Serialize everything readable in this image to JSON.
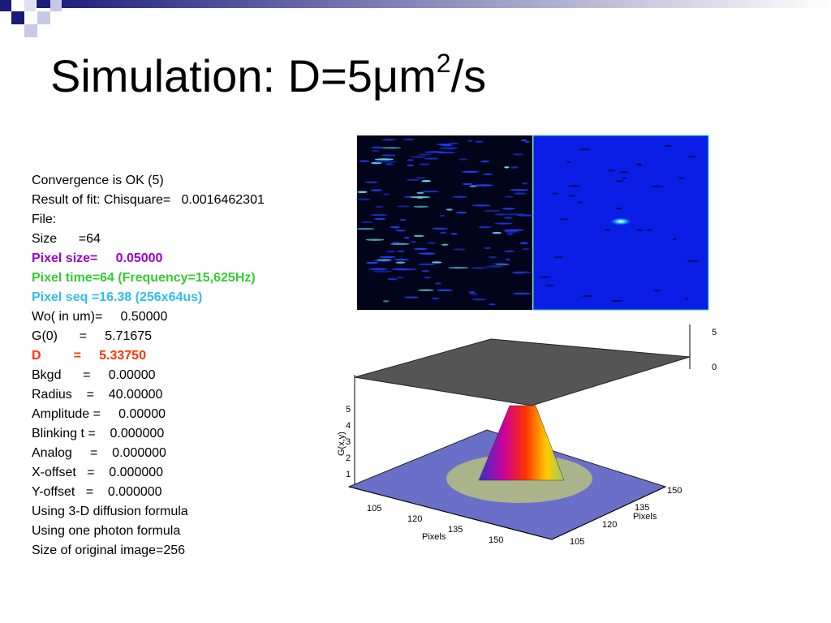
{
  "title": {
    "main": "Simulation: D=5μm",
    "sup": "2",
    "tail": "/s"
  },
  "lines": [
    {
      "text": "Convergence is OK (5)"
    },
    {
      "text": "Result of fit: Chisquare=   0.0016462301"
    },
    {
      "text": "File:"
    },
    {
      "text": "Size      =64"
    },
    {
      "text": "Pixel size=     0.05000",
      "color": "#9900cc",
      "bold": true
    },
    {
      "text": "Pixel time=64 (Frequency=15,625Hz)",
      "color": "#33cc33",
      "bold": true
    },
    {
      "text": "Pixel seq =16.38 (256x64us)",
      "color": "#33bbee",
      "bold": true
    },
    {
      "text": "Wo( in um)=     0.50000"
    },
    {
      "text": "G(0)      =     5.71675"
    },
    {
      "text": "D         =     5.33750",
      "color": "#ff3300",
      "bold": true
    },
    {
      "text": "Bkgd      =     0.00000"
    },
    {
      "text": "Radius    =    40.00000"
    },
    {
      "text": "Amplitude =     0.00000"
    },
    {
      "text": "Blinking t =    0.000000"
    },
    {
      "text": "Analog     =    0.000000"
    },
    {
      "text": "X-offset   =    0.000000"
    },
    {
      "text": "Y-offset   =    0.000000"
    },
    {
      "text": "Using 3-D diffusion formula"
    },
    {
      "text": "Using one photon formula"
    },
    {
      "text": "Size of original image=256"
    }
  ],
  "plot": {
    "z_label": "G(x,y)",
    "z_ticks": [
      "5",
      "4",
      "3",
      "2",
      "1"
    ],
    "x_ticks": [
      "105",
      "120",
      "135",
      "150"
    ],
    "x_label": "Pixels",
    "y_ticks": [
      "150",
      "135",
      "120",
      "105"
    ],
    "y_label": "Pixels",
    "side_ticks": [
      "5",
      "0"
    ]
  }
}
